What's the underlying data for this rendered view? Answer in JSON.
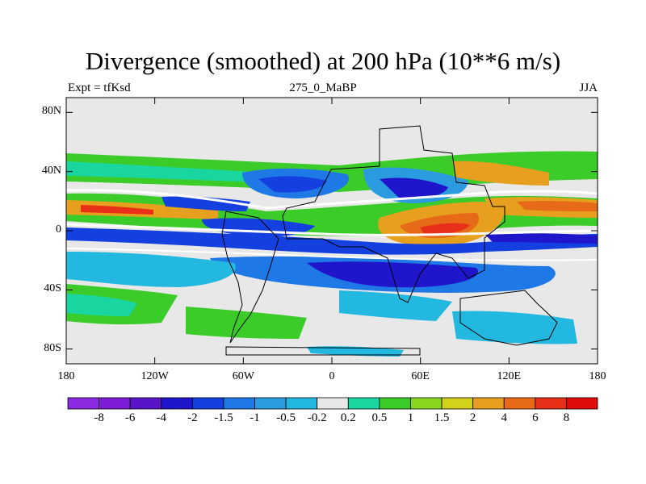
{
  "title": "Divergence (smoothed) at 200 hPa (10**6 m/s)",
  "subtitle_left": "Expt = tfKsd",
  "subtitle_center": "275_0_MaBP",
  "subtitle_right": "JJA",
  "x_ticks": [
    "180",
    "120W",
    "60W",
    "0",
    "60E",
    "120E",
    "180"
  ],
  "y_ticks": [
    "80N",
    "40N",
    "0",
    "40S",
    "80S"
  ],
  "colorbar": {
    "colors": [
      "#8a2be2",
      "#7c1cd6",
      "#5a14c8",
      "#1f16cc",
      "#1440e0",
      "#1e78e6",
      "#2b9be0",
      "#22b8e0",
      "#e8e8e8",
      "#19d6a0",
      "#3ccc2a",
      "#8ad61e",
      "#d2d21a",
      "#e6a01e",
      "#e66a18",
      "#e83018",
      "#e00a0a"
    ],
    "labels": [
      "-8",
      "-6",
      "-4",
      "-2",
      "-1.5",
      "-1",
      "-0.5",
      "-0.2",
      "0.2",
      "0.5",
      "1",
      "1.5",
      "2",
      "4",
      "6",
      "8"
    ]
  }
}
